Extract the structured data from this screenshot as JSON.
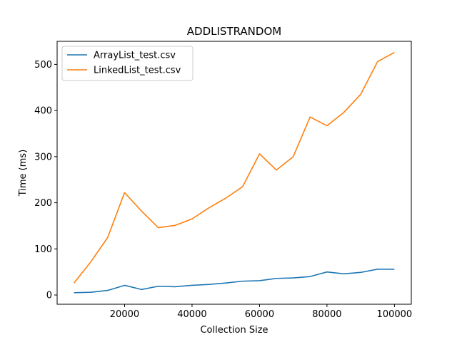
{
  "chart_data": {
    "type": "line",
    "title": "ADDLISTRANDOM",
    "xlabel": "Collection Size",
    "ylabel": "Time (ms)",
    "xlim": [
      0,
      105000
    ],
    "ylim": [
      -20,
      550
    ],
    "xticks": [
      20000,
      40000,
      60000,
      80000,
      100000
    ],
    "yticks": [
      0,
      100,
      200,
      300,
      400,
      500
    ],
    "grid": false,
    "legend": "top-left",
    "x": [
      5000,
      10000,
      15000,
      20000,
      25000,
      30000,
      35000,
      40000,
      45000,
      50000,
      55000,
      60000,
      65000,
      70000,
      75000,
      80000,
      85000,
      90000,
      95000,
      100000
    ],
    "series": [
      {
        "name": "ArrayList_test.csv",
        "color": "#1f77b4",
        "values": [
          5,
          6,
          10,
          21,
          12,
          19,
          18,
          21,
          23,
          26,
          30,
          31,
          36,
          37,
          40,
          50,
          46,
          49,
          56,
          56
        ]
      },
      {
        "name": "LinkedList_test.csv",
        "color": "#ff7f0e",
        "values": [
          26,
          72,
          125,
          222,
          182,
          146,
          151,
          165,
          189,
          210,
          235,
          306,
          271,
          300,
          386,
          367,
          396,
          435,
          506,
          526
        ]
      }
    ]
  }
}
